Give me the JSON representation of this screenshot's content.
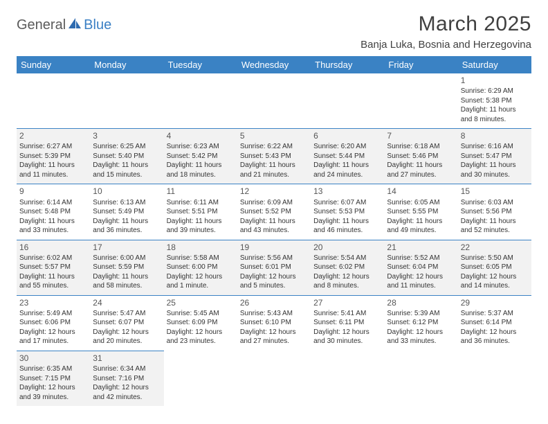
{
  "brand": {
    "part1": "General",
    "part2": "Blue"
  },
  "title": "March 2025",
  "location": "Banja Luka, Bosnia and Herzegovina",
  "colors": {
    "header_bg": "#3a82c4",
    "header_text": "#ffffff",
    "brand_gray": "#5a5a5a",
    "brand_blue": "#3a7fc4",
    "row_alt": "#f2f2f2",
    "border": "#3a82c4"
  },
  "day_headers": [
    "Sunday",
    "Monday",
    "Tuesday",
    "Wednesday",
    "Thursday",
    "Friday",
    "Saturday"
  ],
  "weeks": [
    [
      null,
      null,
      null,
      null,
      null,
      null,
      {
        "n": "1",
        "sr": "6:29 AM",
        "ss": "5:38 PM",
        "dl": "11 hours and 8 minutes."
      }
    ],
    [
      {
        "n": "2",
        "sr": "6:27 AM",
        "ss": "5:39 PM",
        "dl": "11 hours and 11 minutes."
      },
      {
        "n": "3",
        "sr": "6:25 AM",
        "ss": "5:40 PM",
        "dl": "11 hours and 15 minutes."
      },
      {
        "n": "4",
        "sr": "6:23 AM",
        "ss": "5:42 PM",
        "dl": "11 hours and 18 minutes."
      },
      {
        "n": "5",
        "sr": "6:22 AM",
        "ss": "5:43 PM",
        "dl": "11 hours and 21 minutes."
      },
      {
        "n": "6",
        "sr": "6:20 AM",
        "ss": "5:44 PM",
        "dl": "11 hours and 24 minutes."
      },
      {
        "n": "7",
        "sr": "6:18 AM",
        "ss": "5:46 PM",
        "dl": "11 hours and 27 minutes."
      },
      {
        "n": "8",
        "sr": "6:16 AM",
        "ss": "5:47 PM",
        "dl": "11 hours and 30 minutes."
      }
    ],
    [
      {
        "n": "9",
        "sr": "6:14 AM",
        "ss": "5:48 PM",
        "dl": "11 hours and 33 minutes."
      },
      {
        "n": "10",
        "sr": "6:13 AM",
        "ss": "5:49 PM",
        "dl": "11 hours and 36 minutes."
      },
      {
        "n": "11",
        "sr": "6:11 AM",
        "ss": "5:51 PM",
        "dl": "11 hours and 39 minutes."
      },
      {
        "n": "12",
        "sr": "6:09 AM",
        "ss": "5:52 PM",
        "dl": "11 hours and 43 minutes."
      },
      {
        "n": "13",
        "sr": "6:07 AM",
        "ss": "5:53 PM",
        "dl": "11 hours and 46 minutes."
      },
      {
        "n": "14",
        "sr": "6:05 AM",
        "ss": "5:55 PM",
        "dl": "11 hours and 49 minutes."
      },
      {
        "n": "15",
        "sr": "6:03 AM",
        "ss": "5:56 PM",
        "dl": "11 hours and 52 minutes."
      }
    ],
    [
      {
        "n": "16",
        "sr": "6:02 AM",
        "ss": "5:57 PM",
        "dl": "11 hours and 55 minutes."
      },
      {
        "n": "17",
        "sr": "6:00 AM",
        "ss": "5:59 PM",
        "dl": "11 hours and 58 minutes."
      },
      {
        "n": "18",
        "sr": "5:58 AM",
        "ss": "6:00 PM",
        "dl": "12 hours and 1 minute."
      },
      {
        "n": "19",
        "sr": "5:56 AM",
        "ss": "6:01 PM",
        "dl": "12 hours and 5 minutes."
      },
      {
        "n": "20",
        "sr": "5:54 AM",
        "ss": "6:02 PM",
        "dl": "12 hours and 8 minutes."
      },
      {
        "n": "21",
        "sr": "5:52 AM",
        "ss": "6:04 PM",
        "dl": "12 hours and 11 minutes."
      },
      {
        "n": "22",
        "sr": "5:50 AM",
        "ss": "6:05 PM",
        "dl": "12 hours and 14 minutes."
      }
    ],
    [
      {
        "n": "23",
        "sr": "5:49 AM",
        "ss": "6:06 PM",
        "dl": "12 hours and 17 minutes."
      },
      {
        "n": "24",
        "sr": "5:47 AM",
        "ss": "6:07 PM",
        "dl": "12 hours and 20 minutes."
      },
      {
        "n": "25",
        "sr": "5:45 AM",
        "ss": "6:09 PM",
        "dl": "12 hours and 23 minutes."
      },
      {
        "n": "26",
        "sr": "5:43 AM",
        "ss": "6:10 PM",
        "dl": "12 hours and 27 minutes."
      },
      {
        "n": "27",
        "sr": "5:41 AM",
        "ss": "6:11 PM",
        "dl": "12 hours and 30 minutes."
      },
      {
        "n": "28",
        "sr": "5:39 AM",
        "ss": "6:12 PM",
        "dl": "12 hours and 33 minutes."
      },
      {
        "n": "29",
        "sr": "5:37 AM",
        "ss": "6:14 PM",
        "dl": "12 hours and 36 minutes."
      }
    ],
    [
      {
        "n": "30",
        "sr": "6:35 AM",
        "ss": "7:15 PM",
        "dl": "12 hours and 39 minutes."
      },
      {
        "n": "31",
        "sr": "6:34 AM",
        "ss": "7:16 PM",
        "dl": "12 hours and 42 minutes."
      },
      null,
      null,
      null,
      null,
      null
    ]
  ],
  "labels": {
    "sunrise": "Sunrise:",
    "sunset": "Sunset:",
    "daylight": "Daylight:"
  }
}
